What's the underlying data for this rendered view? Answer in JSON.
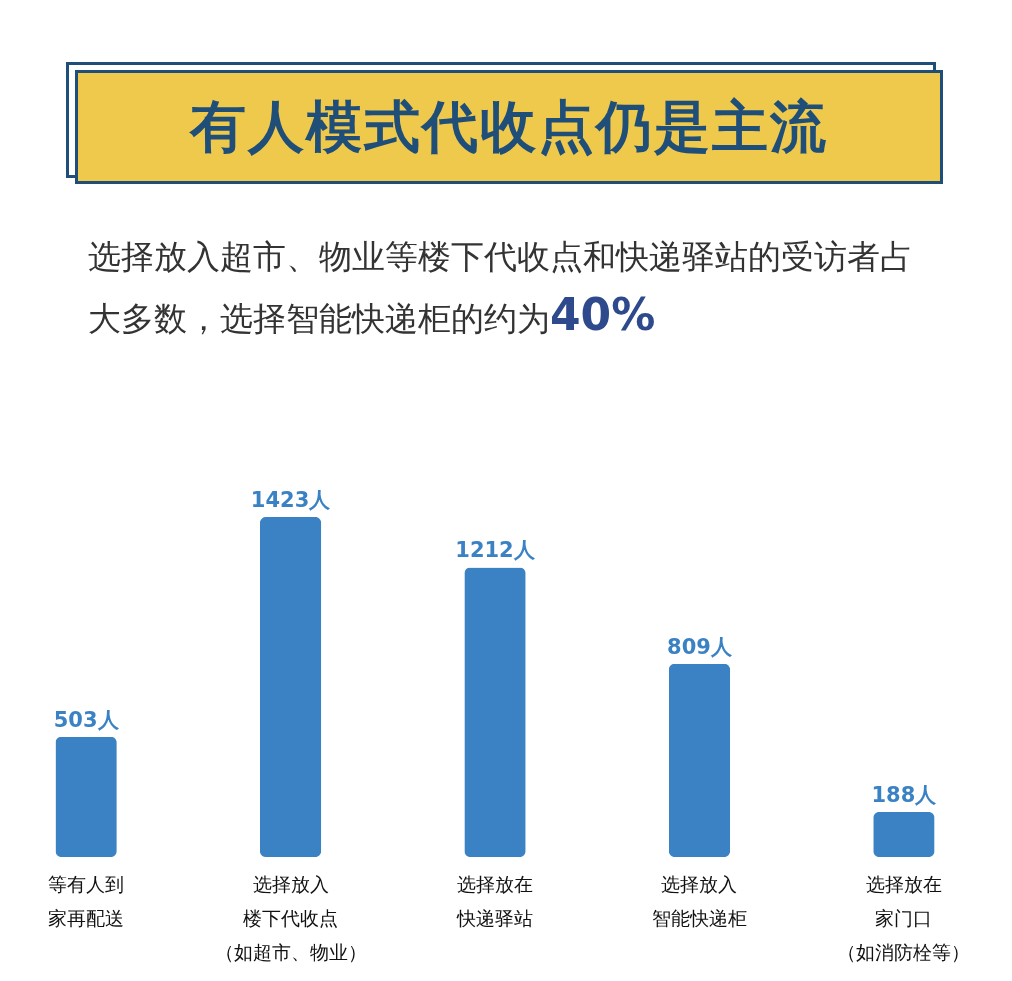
{
  "chart_data": {
    "type": "bar",
    "title": "有人模式代收点仍是主流",
    "subtitle": "选择放入超市、物业等楼下代收点和快递驿站的受访者占大多数，选择智能快递柜的约为40%",
    "categories": [
      "等有人到家再配送",
      "选择放入楼下代收点（如超市、物业）",
      "选择放在快递驿站",
      "选择放入智能快递柜",
      "选择放在家门口（如消防栓等）"
    ],
    "values": [
      503,
      1423,
      1212,
      809,
      188
    ],
    "value_labels": [
      "503人",
      "1423人",
      "1212人",
      "809人",
      "188人"
    ],
    "color": "#3b82c4",
    "grid": false
  }
}
